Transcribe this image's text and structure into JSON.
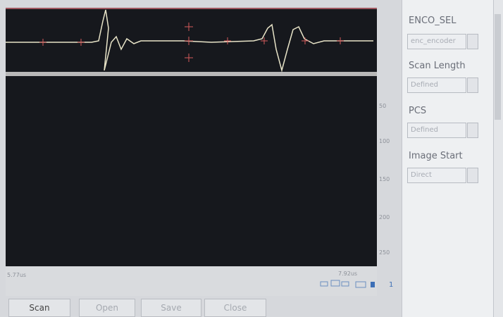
{
  "panel": {
    "encoder_label": "ENCO_SEL",
    "encoder_value": "enc_encoder",
    "scan_length_label": "Scan Length",
    "scan_length_value": "Defined",
    "pcs_label": "PCS",
    "pcs_value": "Defined",
    "image_start_label": "Image Start",
    "image_start_value": "Direct"
  },
  "depth_scale": [
    50,
    100,
    150,
    200,
    250
  ],
  "time_start": "5.77us",
  "time_end": "7.92us",
  "page": "1",
  "buttons": [
    "Scan",
    "Open",
    "Save",
    "Close"
  ]
}
